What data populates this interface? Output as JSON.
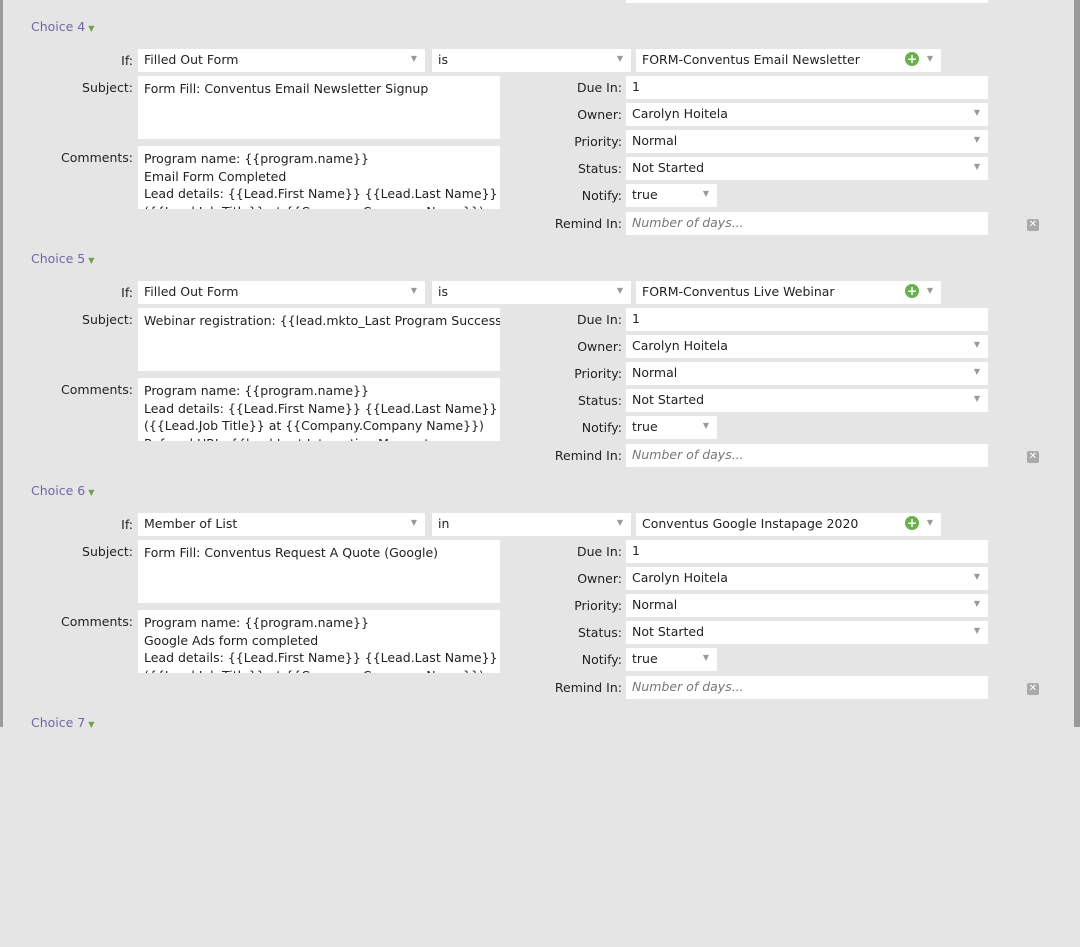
{
  "labels": {
    "if": "If:",
    "subject": "Subject:",
    "comments": "Comments:",
    "due": "Due In:",
    "owner": "Owner:",
    "priority": "Priority:",
    "status": "Status:",
    "notify": "Notify:",
    "remind": "Remind In:"
  },
  "remind_placeholder": "Number of days...",
  "choices": [
    {
      "title": "Choice 4",
      "condition": "Filled Out Form",
      "operator": "is",
      "value": "FORM-Conventus Email Newsletter",
      "subject": "Form Fill: Conventus Email Newsletter Signup",
      "comments": "Program name: {{program.name}}\nEmail Form Completed\nLead details: {{Lead.First Name}} {{Lead.Last Name}}\n({{Lead.Job Title}} at {{Company.Company Name}})",
      "due_in": "1",
      "owner": "Carolyn Hoitela",
      "priority": "Normal",
      "status": "Not Started",
      "notify": "true"
    },
    {
      "title": "Choice 5",
      "condition": "Filled Out Form",
      "operator": "is",
      "value": "FORM-Conventus Live Webinar",
      "subject": "Webinar registration: {{lead.mkto_Last Program Success}}",
      "comments": "Program name: {{program.name}}\nLead details: {{Lead.First Name}} {{Lead.Last Name}}\n({{Lead.Job Title}} at {{Company.Company Name}})\nReferral URL: {{lead.Last Interesting Moment",
      "due_in": "1",
      "owner": "Carolyn Hoitela",
      "priority": "Normal",
      "status": "Not Started",
      "notify": "true"
    },
    {
      "title": "Choice 6",
      "condition": "Member of List",
      "operator": "in",
      "value": "Conventus Google Instapage 2020",
      "subject": "Form Fill: Conventus Request A Quote (Google)",
      "comments": "Program name: {{program.name}}\nGoogle Ads form completed\nLead details: {{Lead.First Name}} {{Lead.Last Name}}\n({{Lead.Job Title}} at {{Company.Company Name}})",
      "due_in": "1",
      "owner": "Carolyn Hoitela",
      "priority": "Normal",
      "status": "Not Started",
      "notify": "true"
    },
    {
      "title": "Choice 7"
    }
  ]
}
